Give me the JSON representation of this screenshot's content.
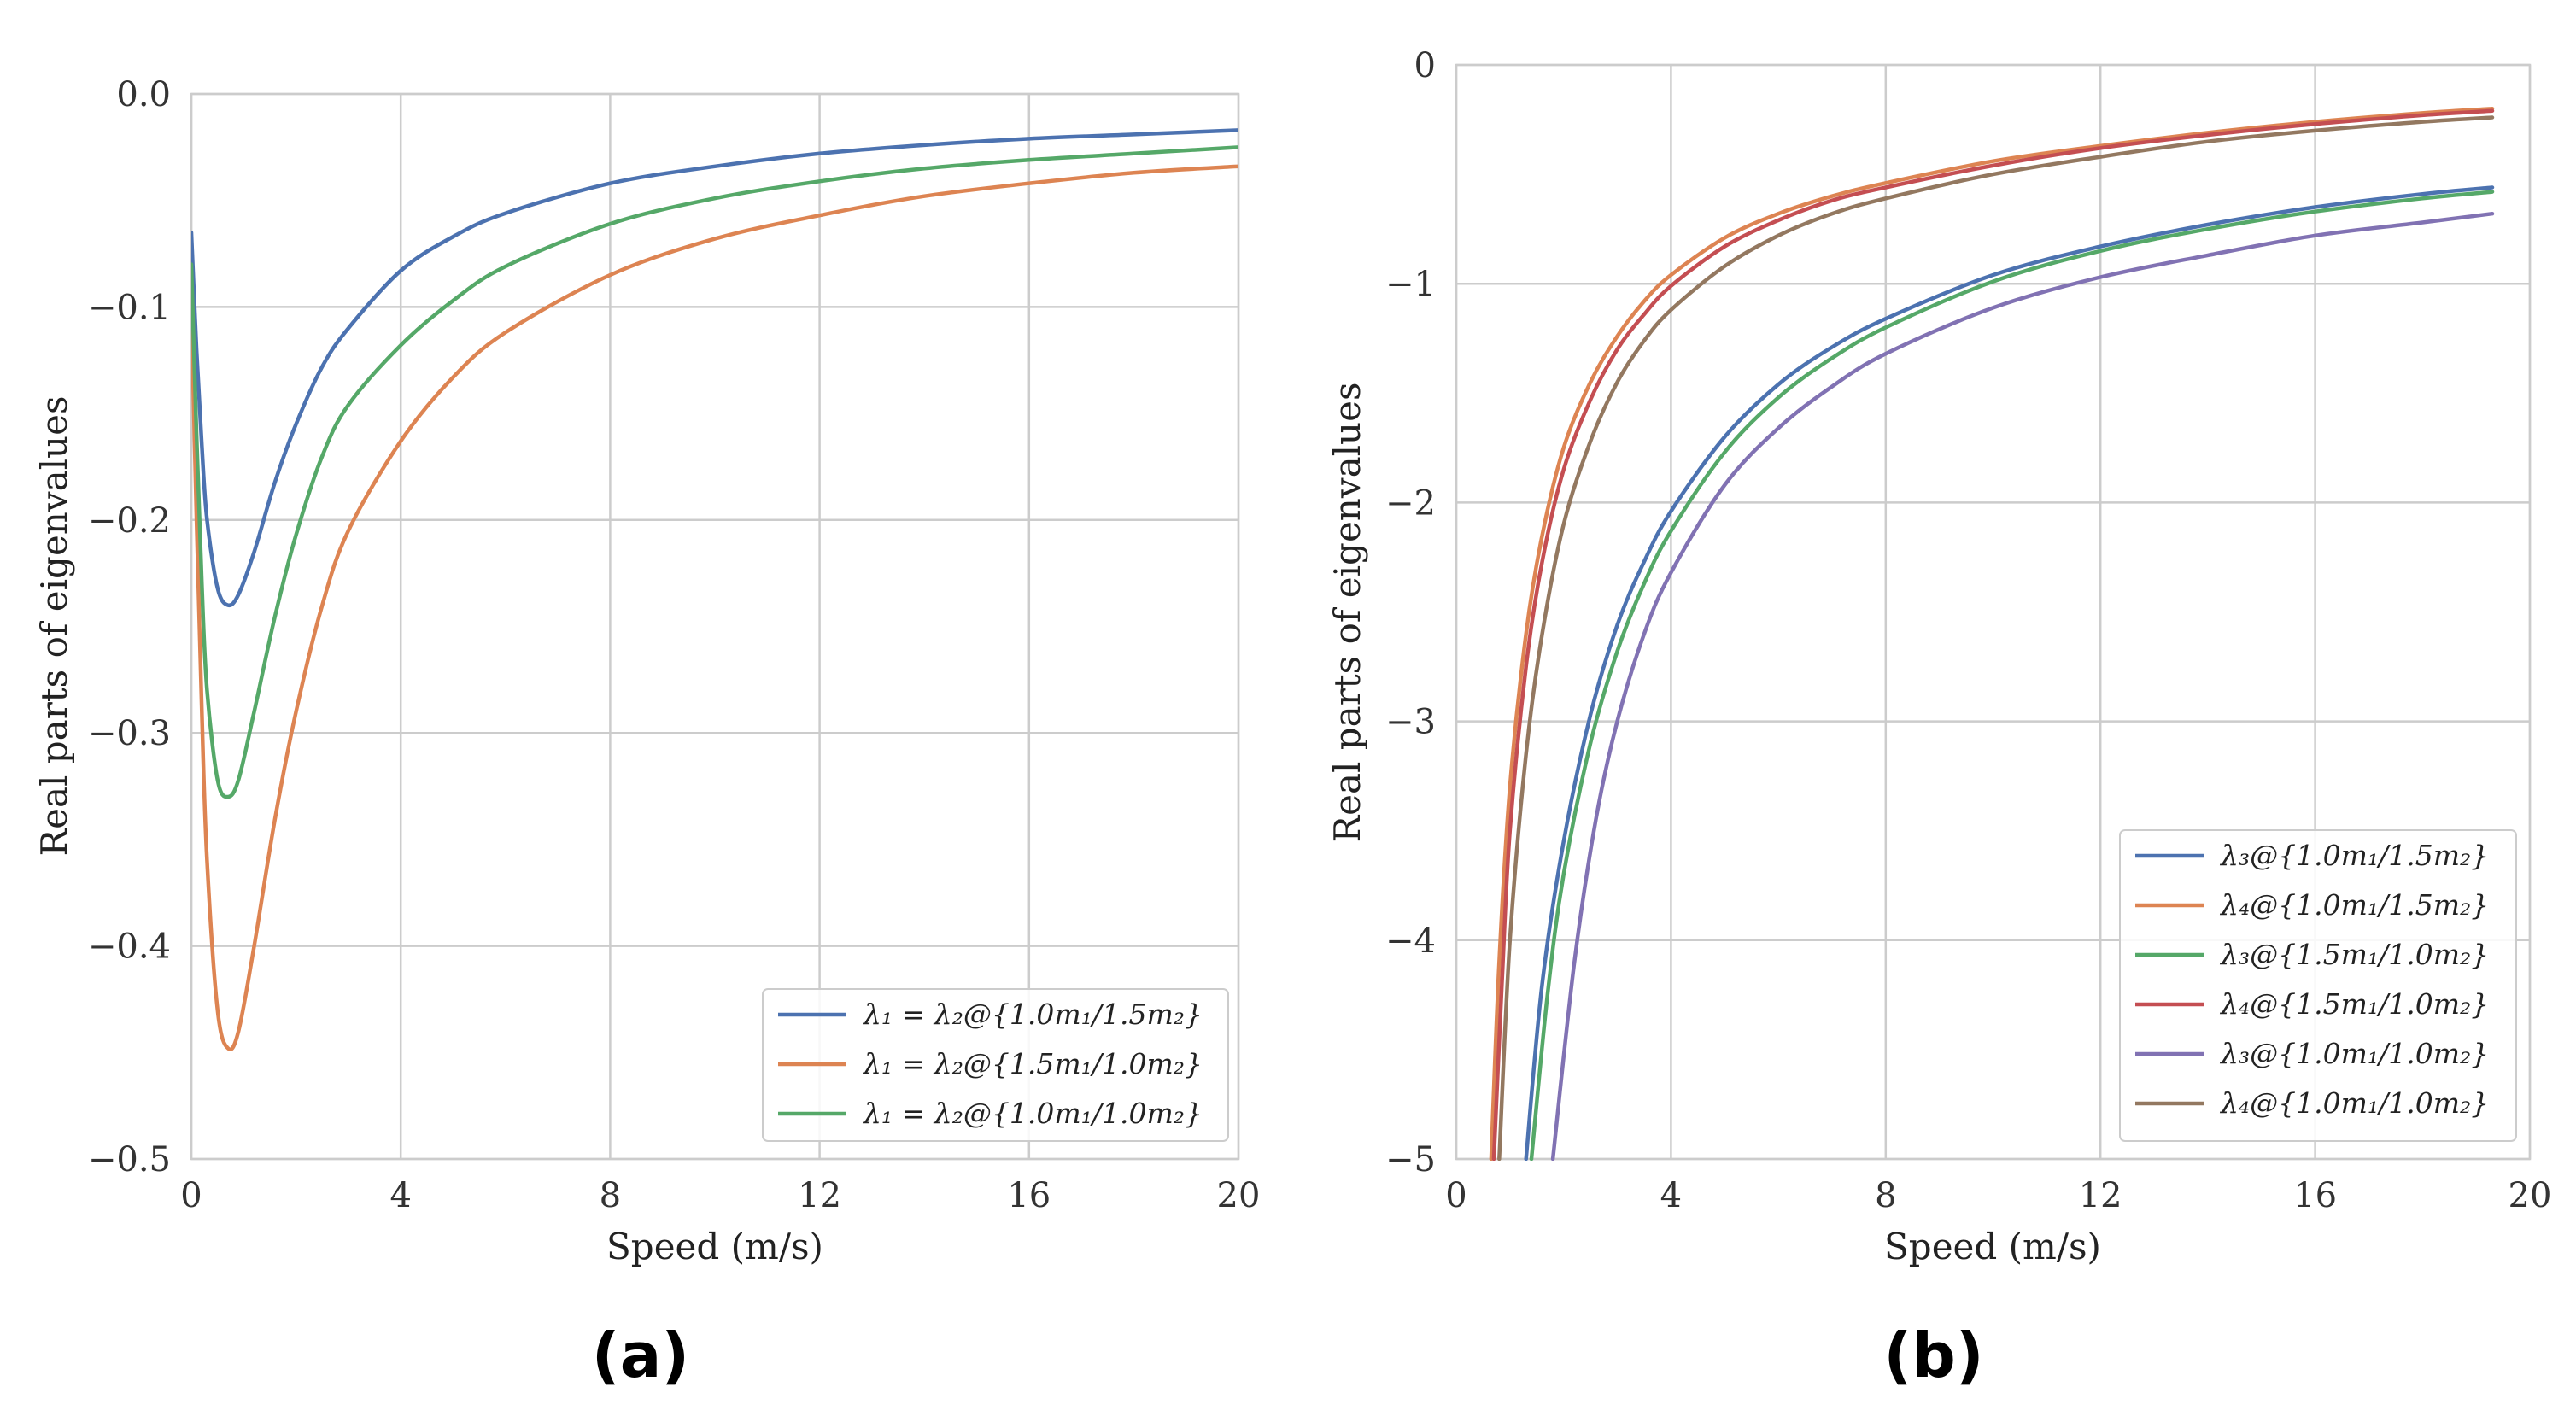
{
  "chart_data": [
    {
      "id": "a",
      "type": "line",
      "panel_label": "(a)",
      "xlabel": "Speed (m/s)",
      "ylabel": "Real parts of eigenvalues",
      "xlim": [
        0,
        20
      ],
      "ylim": [
        -0.5,
        0.0
      ],
      "xticks": [
        0,
        4,
        8,
        12,
        16,
        20
      ],
      "yticks": [
        0.0,
        -0.1,
        -0.2,
        -0.3,
        -0.4,
        -0.5
      ],
      "xtick_labels": [
        "0",
        "4",
        "8",
        "12",
        "16",
        "20"
      ],
      "ytick_labels": [
        "0.0",
        "−0.1",
        "−0.2",
        "−0.3",
        "−0.4",
        "−0.5"
      ],
      "grid": true,
      "legend_position": "lower-right",
      "series": [
        {
          "name": "λ₁ = λ₂@{1.0m₁/1.5m₂}",
          "color": "#4c72b0",
          "x": [
            0,
            0.1,
            0.2,
            0.3,
            0.5,
            0.7,
            0.9,
            1.2,
            1.6,
            2.0,
            2.5,
            3,
            4,
            5,
            6,
            8,
            10,
            12,
            14,
            16,
            18,
            20
          ],
          "y": [
            -0.065,
            -0.12,
            -0.165,
            -0.2,
            -0.232,
            -0.24,
            -0.235,
            -0.215,
            -0.182,
            -0.155,
            -0.128,
            -0.11,
            -0.083,
            -0.067,
            -0.056,
            -0.042,
            -0.034,
            -0.028,
            -0.024,
            -0.021,
            -0.019,
            -0.017
          ]
        },
        {
          "name": "λ₁ = λ₂@{1.5m₁/1.0m₂}",
          "color": "#dd8452",
          "x": [
            0,
            0.1,
            0.2,
            0.3,
            0.5,
            0.7,
            0.9,
            1.2,
            1.6,
            2.0,
            2.5,
            3,
            4,
            5,
            6,
            8,
            10,
            12,
            14,
            16,
            18,
            20
          ],
          "y": [
            -0.1,
            -0.2,
            -0.29,
            -0.36,
            -0.43,
            -0.448,
            -0.44,
            -0.4,
            -0.34,
            -0.29,
            -0.24,
            -0.205,
            -0.163,
            -0.133,
            -0.112,
            -0.085,
            -0.068,
            -0.057,
            -0.048,
            -0.042,
            -0.037,
            -0.034
          ]
        },
        {
          "name": "λ₁ = λ₂@{1.0m₁/1.0m₂}",
          "color": "#55a868",
          "x": [
            0,
            0.1,
            0.2,
            0.3,
            0.5,
            0.7,
            0.9,
            1.2,
            1.6,
            2.0,
            2.5,
            3,
            4,
            5,
            6,
            8,
            10,
            12,
            14,
            16,
            18,
            20
          ],
          "y": [
            -0.08,
            -0.16,
            -0.23,
            -0.28,
            -0.322,
            -0.33,
            -0.322,
            -0.29,
            -0.245,
            -0.207,
            -0.17,
            -0.146,
            -0.118,
            -0.097,
            -0.081,
            -0.061,
            -0.049,
            -0.041,
            -0.035,
            -0.031,
            -0.028,
            -0.025
          ]
        }
      ]
    },
    {
      "id": "b",
      "type": "line",
      "panel_label": "(b)",
      "xlabel": "Speed (m/s)",
      "ylabel": "Real parts of eigenvalues",
      "xlim": [
        0,
        20
      ],
      "ylim": [
        -5,
        0
      ],
      "xticks": [
        0,
        4,
        8,
        12,
        16,
        20
      ],
      "yticks": [
        0,
        -1,
        -2,
        -3,
        -4,
        -5
      ],
      "xtick_labels": [
        "0",
        "4",
        "8",
        "12",
        "16",
        "20"
      ],
      "ytick_labels": [
        "0",
        "−1",
        "−2",
        "−3",
        "−4",
        "−5"
      ],
      "grid": true,
      "legend_position": "lower-right",
      "series": [
        {
          "name": "λ₃@{1.0m₁/1.5m₂}",
          "color": "#4c72b0",
          "x": [
            1.3,
            1.6,
            2,
            2.5,
            3,
            3.5,
            4,
            5,
            6,
            7,
            8,
            10,
            12,
            14,
            16,
            18,
            19.3
          ],
          "y": [
            -5,
            -4.2,
            -3.55,
            -2.97,
            -2.56,
            -2.27,
            -2.04,
            -1.7,
            -1.46,
            -1.29,
            -1.16,
            -0.96,
            -0.83,
            -0.73,
            -0.65,
            -0.59,
            -0.56
          ]
        },
        {
          "name": "λ₄@{1.0m₁/1.5m₂}",
          "color": "#dd8452",
          "x": [
            0.65,
            0.8,
            1,
            1.3,
            1.6,
            2,
            2.5,
            3,
            3.5,
            4,
            5,
            6,
            7,
            8,
            10,
            12,
            14,
            16,
            18,
            19.3
          ],
          "y": [
            -5,
            -4.1,
            -3.3,
            -2.6,
            -2.15,
            -1.75,
            -1.45,
            -1.24,
            -1.08,
            -0.96,
            -0.79,
            -0.68,
            -0.6,
            -0.54,
            -0.44,
            -0.37,
            -0.31,
            -0.26,
            -0.22,
            -0.2
          ]
        },
        {
          "name": "λ₃@{1.5m₁/1.0m₂}",
          "color": "#55a868",
          "x": [
            1.4,
            1.7,
            2,
            2.5,
            3,
            3.5,
            4,
            5,
            6,
            7,
            8,
            10,
            12,
            14,
            16,
            18,
            19.3
          ],
          "y": [
            -5,
            -4.25,
            -3.7,
            -3.1,
            -2.68,
            -2.37,
            -2.13,
            -1.77,
            -1.52,
            -1.34,
            -1.2,
            -0.99,
            -0.85,
            -0.75,
            -0.67,
            -0.61,
            -0.58
          ]
        },
        {
          "name": "λ₄@{1.5m₁/1.0m₂}",
          "color": "#c44e52",
          "x": [
            0.7,
            0.85,
            1,
            1.3,
            1.6,
            2,
            2.5,
            3,
            3.5,
            4,
            5,
            6,
            7,
            8,
            10,
            12,
            14,
            16,
            18,
            19.3
          ],
          "y": [
            -5,
            -4.2,
            -3.5,
            -2.75,
            -2.27,
            -1.85,
            -1.53,
            -1.3,
            -1.14,
            -1.01,
            -0.83,
            -0.71,
            -0.62,
            -0.56,
            -0.46,
            -0.38,
            -0.32,
            -0.27,
            -0.23,
            -0.21
          ]
        },
        {
          "name": "λ₃@{1.0m₁/1.0m₂}",
          "color": "#8172b3",
          "x": [
            1.8,
            2.2,
            2.6,
            3,
            3.5,
            4,
            5,
            6,
            7,
            8,
            10,
            12,
            14,
            16,
            18,
            19.3
          ],
          "y": [
            -5,
            -4.1,
            -3.45,
            -3.0,
            -2.6,
            -2.32,
            -1.92,
            -1.66,
            -1.47,
            -1.32,
            -1.11,
            -0.97,
            -0.87,
            -0.78,
            -0.72,
            -0.68
          ]
        },
        {
          "name": "λ₄@{1.0m₁/1.0m₂}",
          "color": "#937860",
          "x": [
            0.8,
            1,
            1.3,
            1.6,
            2,
            2.5,
            3,
            3.5,
            4,
            5,
            6,
            7,
            8,
            10,
            12,
            14,
            16,
            18,
            19.3
          ],
          "y": [
            -5,
            -4.0,
            -3.15,
            -2.6,
            -2.1,
            -1.72,
            -1.45,
            -1.26,
            -1.12,
            -0.92,
            -0.78,
            -0.68,
            -0.61,
            -0.5,
            -0.42,
            -0.35,
            -0.3,
            -0.26,
            -0.24
          ]
        }
      ]
    }
  ]
}
